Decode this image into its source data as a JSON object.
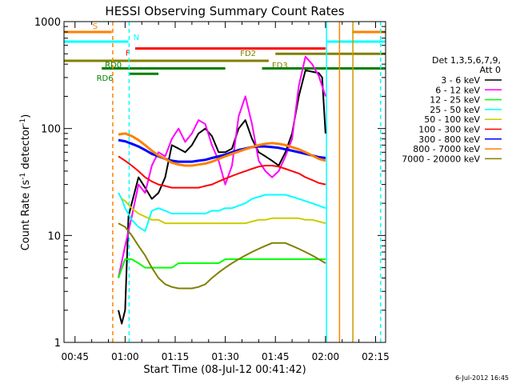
{
  "chart_data": {
    "type": "line",
    "title": "HESSI Observing Summary Count Rates",
    "xlabel": "Start Time (08-Jul-12 00:41:42)",
    "ylabel_pre": "Count Rate (s",
    "ylabel_sup1": "-1",
    "ylabel_mid": " detector",
    "ylabel_sup2": "-1",
    "ylabel_post": ")",
    "y_scale": "log",
    "xlim_min": [
      41.7,
      138
    ],
    "ylim": [
      1,
      1000
    ],
    "x_ticks": [
      {
        "label": "00:45",
        "min": 45
      },
      {
        "label": "01:00",
        "min": 60
      },
      {
        "label": "01:15",
        "min": 75
      },
      {
        "label": "01:30",
        "min": 90
      },
      {
        "label": "01:45",
        "min": 105
      },
      {
        "label": "02:00",
        "min": 120
      },
      {
        "label": "02:15",
        "min": 135
      }
    ],
    "y_ticks": [
      {
        "label": "1",
        "value": 1
      },
      {
        "label": "10",
        "value": 10
      },
      {
        "label": "100",
        "value": 100
      },
      {
        "label": "1000",
        "value": 1000
      }
    ],
    "legend": {
      "placement": "right",
      "header1": "Det 1,3,5,6,7,9,",
      "header2": "Att 0",
      "entries": [
        {
          "label": "3 - 6 keV",
          "color": "#000000"
        },
        {
          "label": "6 - 12 keV",
          "color": "#ff00ff"
        },
        {
          "label": "12 - 25 keV",
          "color": "#00ff00"
        },
        {
          "label": "25 - 50 keV",
          "color": "#00ffff"
        },
        {
          "label": "50 - 100 keV",
          "color": "#cccc00"
        },
        {
          "label": "100 - 300 keV",
          "color": "#ff0000"
        },
        {
          "label": "300 - 800 keV",
          "color": "#0000ff"
        },
        {
          "label": "800 - 7000 keV",
          "color": "#ff8000"
        },
        {
          "label": "7000 - 20000 keV",
          "color": "#808000"
        }
      ]
    },
    "flag_bars": [
      {
        "label": "S",
        "color": "#ff8000",
        "y": 800,
        "segments": [
          [
            41.7,
            56
          ],
          [
            128,
            138
          ]
        ]
      },
      {
        "label": "N",
        "color": "#00ffff",
        "y": 650,
        "segments": [
          [
            41.7,
            61
          ],
          [
            120.5,
            138
          ]
        ]
      },
      {
        "label": "F",
        "color": "#ff0000",
        "y": 560,
        "segments": [
          [
            63,
            120
          ]
        ]
      },
      {
        "label": "FD2",
        "color": "#808000",
        "y": 500,
        "segments": [
          [
            105,
            138
          ]
        ]
      },
      {
        "label": "FD3",
        "color": "#808000",
        "y": 430,
        "segments": [
          [
            41.7,
            103
          ]
        ]
      },
      {
        "label": "RD0",
        "color": "#008000",
        "y": 365,
        "segments": [
          [
            53,
            90
          ],
          [
            101,
            138
          ]
        ]
      },
      {
        "label": "RD6",
        "color": "#008000",
        "y": 325,
        "segments": [
          [
            61,
            70
          ]
        ]
      }
    ],
    "vertical_markers": [
      {
        "min": 56.3,
        "color": "#ff8000",
        "style": "dashed"
      },
      {
        "min": 61.2,
        "color": "#00ffff",
        "style": "dashed"
      },
      {
        "min": 120.3,
        "color": "#00ffff",
        "style": "solid"
      },
      {
        "min": 124.2,
        "color": "#ff8000",
        "style": "solid"
      },
      {
        "min": 128.2,
        "color": "#cc9900",
        "style": "solid"
      },
      {
        "min": 136.5,
        "color": "#00ffff",
        "style": "dashed"
      }
    ],
    "series": [
      {
        "name": "3 - 6 keV",
        "color": "#000000",
        "x": [
          58,
          59,
          60,
          61,
          62,
          64,
          66,
          68,
          70,
          72,
          74,
          76,
          78,
          80,
          82,
          84,
          86,
          88,
          90,
          92,
          94,
          96,
          98,
          100,
          102,
          104,
          106,
          108,
          110,
          112,
          114,
          116,
          118,
          119,
          120
        ],
        "y": [
          2,
          1.5,
          2,
          15,
          20,
          35,
          28,
          22,
          25,
          35,
          70,
          65,
          60,
          70,
          90,
          100,
          85,
          60,
          60,
          65,
          100,
          120,
          80,
          60,
          55,
          50,
          45,
          60,
          90,
          200,
          350,
          340,
          330,
          300,
          90
        ]
      },
      {
        "name": "6 - 12 keV",
        "color": "#ff00ff",
        "x": [
          58,
          60,
          62,
          64,
          66,
          68,
          70,
          72,
          74,
          76,
          78,
          80,
          82,
          84,
          86,
          88,
          90,
          92,
          94,
          96,
          98,
          100,
          102,
          104,
          106,
          108,
          110,
          112,
          114,
          116,
          118,
          120
        ],
        "y": [
          4,
          8,
          15,
          30,
          25,
          45,
          60,
          55,
          80,
          100,
          75,
          90,
          120,
          110,
          70,
          50,
          30,
          45,
          130,
          200,
          110,
          50,
          40,
          35,
          40,
          55,
          80,
          250,
          470,
          400,
          310,
          200
        ]
      },
      {
        "name": "12 - 25 keV",
        "color": "#00ff00",
        "x": [
          58,
          60,
          62,
          64,
          66,
          68,
          70,
          72,
          74,
          76,
          78,
          80,
          82,
          84,
          86,
          88,
          90,
          92,
          94,
          96,
          98,
          100,
          102,
          104,
          106,
          108,
          110,
          112,
          114,
          116,
          118,
          120
        ],
        "y": [
          4,
          6,
          6,
          5.5,
          5,
          5,
          5,
          5,
          5,
          5.5,
          5.5,
          5.5,
          5.5,
          5.5,
          5.5,
          5.5,
          6,
          6,
          6,
          6,
          6,
          6,
          6,
          6,
          6,
          6,
          6,
          6,
          6,
          6,
          6,
          6
        ]
      },
      {
        "name": "25 - 50 keV",
        "color": "#00ffff",
        "x": [
          58,
          59,
          60,
          62,
          64,
          66,
          68,
          70,
          72,
          74,
          76,
          78,
          80,
          82,
          84,
          86,
          88,
          90,
          92,
          94,
          96,
          98,
          100,
          102,
          104,
          106,
          108,
          110,
          112,
          114,
          116,
          118,
          120
        ],
        "y": [
          25,
          22,
          18,
          14,
          12,
          11,
          17,
          18,
          17,
          16,
          16,
          16,
          16,
          16,
          16,
          17,
          17,
          18,
          18,
          19,
          20,
          22,
          23,
          24,
          24,
          24,
          24,
          23,
          22,
          21,
          20,
          19,
          18
        ]
      },
      {
        "name": "50 - 100 keV",
        "color": "#cccc00",
        "x": [
          59,
          60,
          62,
          64,
          66,
          68,
          70,
          72,
          74,
          76,
          78,
          80,
          82,
          84,
          86,
          88,
          90,
          92,
          94,
          96,
          98,
          100,
          102,
          104,
          106,
          108,
          110,
          112,
          114,
          116,
          118,
          120
        ],
        "y": [
          22,
          21,
          18,
          16,
          15,
          14,
          14,
          13,
          13,
          13,
          13,
          13,
          13,
          13,
          13,
          13,
          13,
          13,
          13,
          13,
          13.5,
          14,
          14,
          14.5,
          14.5,
          14.5,
          14.5,
          14.5,
          14,
          14,
          13.5,
          13
        ]
      },
      {
        "name": "100 - 300 keV",
        "color": "#ff0000",
        "x": [
          58,
          60,
          62,
          64,
          66,
          68,
          70,
          72,
          74,
          76,
          78,
          80,
          82,
          84,
          86,
          88,
          90,
          92,
          94,
          96,
          98,
          100,
          102,
          104,
          106,
          108,
          110,
          112,
          114,
          116,
          118,
          120
        ],
        "y": [
          55,
          50,
          45,
          40,
          35,
          32,
          30,
          29,
          28,
          28,
          28,
          28,
          28,
          29,
          30,
          32,
          34,
          36,
          38,
          40,
          42,
          44,
          45,
          45,
          44,
          42,
          40,
          38,
          35,
          33,
          31,
          30
        ]
      },
      {
        "name": "300 - 800 keV",
        "color": "#0000ff",
        "x": [
          58,
          60,
          62,
          64,
          66,
          68,
          70,
          72,
          74,
          76,
          78,
          80,
          82,
          84,
          86,
          88,
          90,
          92,
          94,
          96,
          98,
          100,
          102,
          104,
          106,
          108,
          110,
          112,
          114,
          116,
          118,
          120
        ],
        "y": [
          78,
          76,
          72,
          68,
          63,
          58,
          55,
          52,
          50,
          49,
          49,
          49,
          50,
          51,
          53,
          55,
          57,
          60,
          63,
          65,
          67,
          68,
          68,
          67,
          66,
          64,
          62,
          60,
          58,
          56,
          54,
          53
        ]
      },
      {
        "name": "800 - 7000 keV",
        "color": "#ff8000",
        "x": [
          58,
          60,
          62,
          64,
          66,
          68,
          70,
          72,
          74,
          76,
          78,
          80,
          82,
          84,
          86,
          88,
          90,
          92,
          94,
          96,
          98,
          100,
          102,
          104,
          106,
          108,
          110,
          112,
          114,
          116,
          118,
          120
        ],
        "y": [
          88,
          90,
          85,
          78,
          70,
          62,
          56,
          52,
          48,
          46,
          45,
          45,
          46,
          47,
          49,
          52,
          55,
          58,
          61,
          64,
          67,
          70,
          72,
          73,
          72,
          70,
          67,
          64,
          60,
          56,
          52,
          50
        ]
      },
      {
        "name": "7000 - 20000 keV",
        "color": "#808000",
        "x": [
          58,
          60,
          62,
          64,
          66,
          68,
          70,
          72,
          74,
          76,
          78,
          80,
          82,
          84,
          86,
          88,
          90,
          92,
          94,
          96,
          98,
          100,
          102,
          104,
          106,
          108,
          110,
          112,
          114,
          116,
          118,
          120
        ],
        "y": [
          13,
          12,
          10,
          8,
          6.5,
          5,
          4,
          3.5,
          3.3,
          3.2,
          3.2,
          3.2,
          3.3,
          3.5,
          4,
          4.5,
          5,
          5.5,
          6,
          6.5,
          7,
          7.5,
          8,
          8.5,
          8.5,
          8.5,
          8,
          7.5,
          7,
          6.5,
          6,
          5.5
        ]
      }
    ],
    "footer_date": "6-Jul-2012 16:45"
  }
}
